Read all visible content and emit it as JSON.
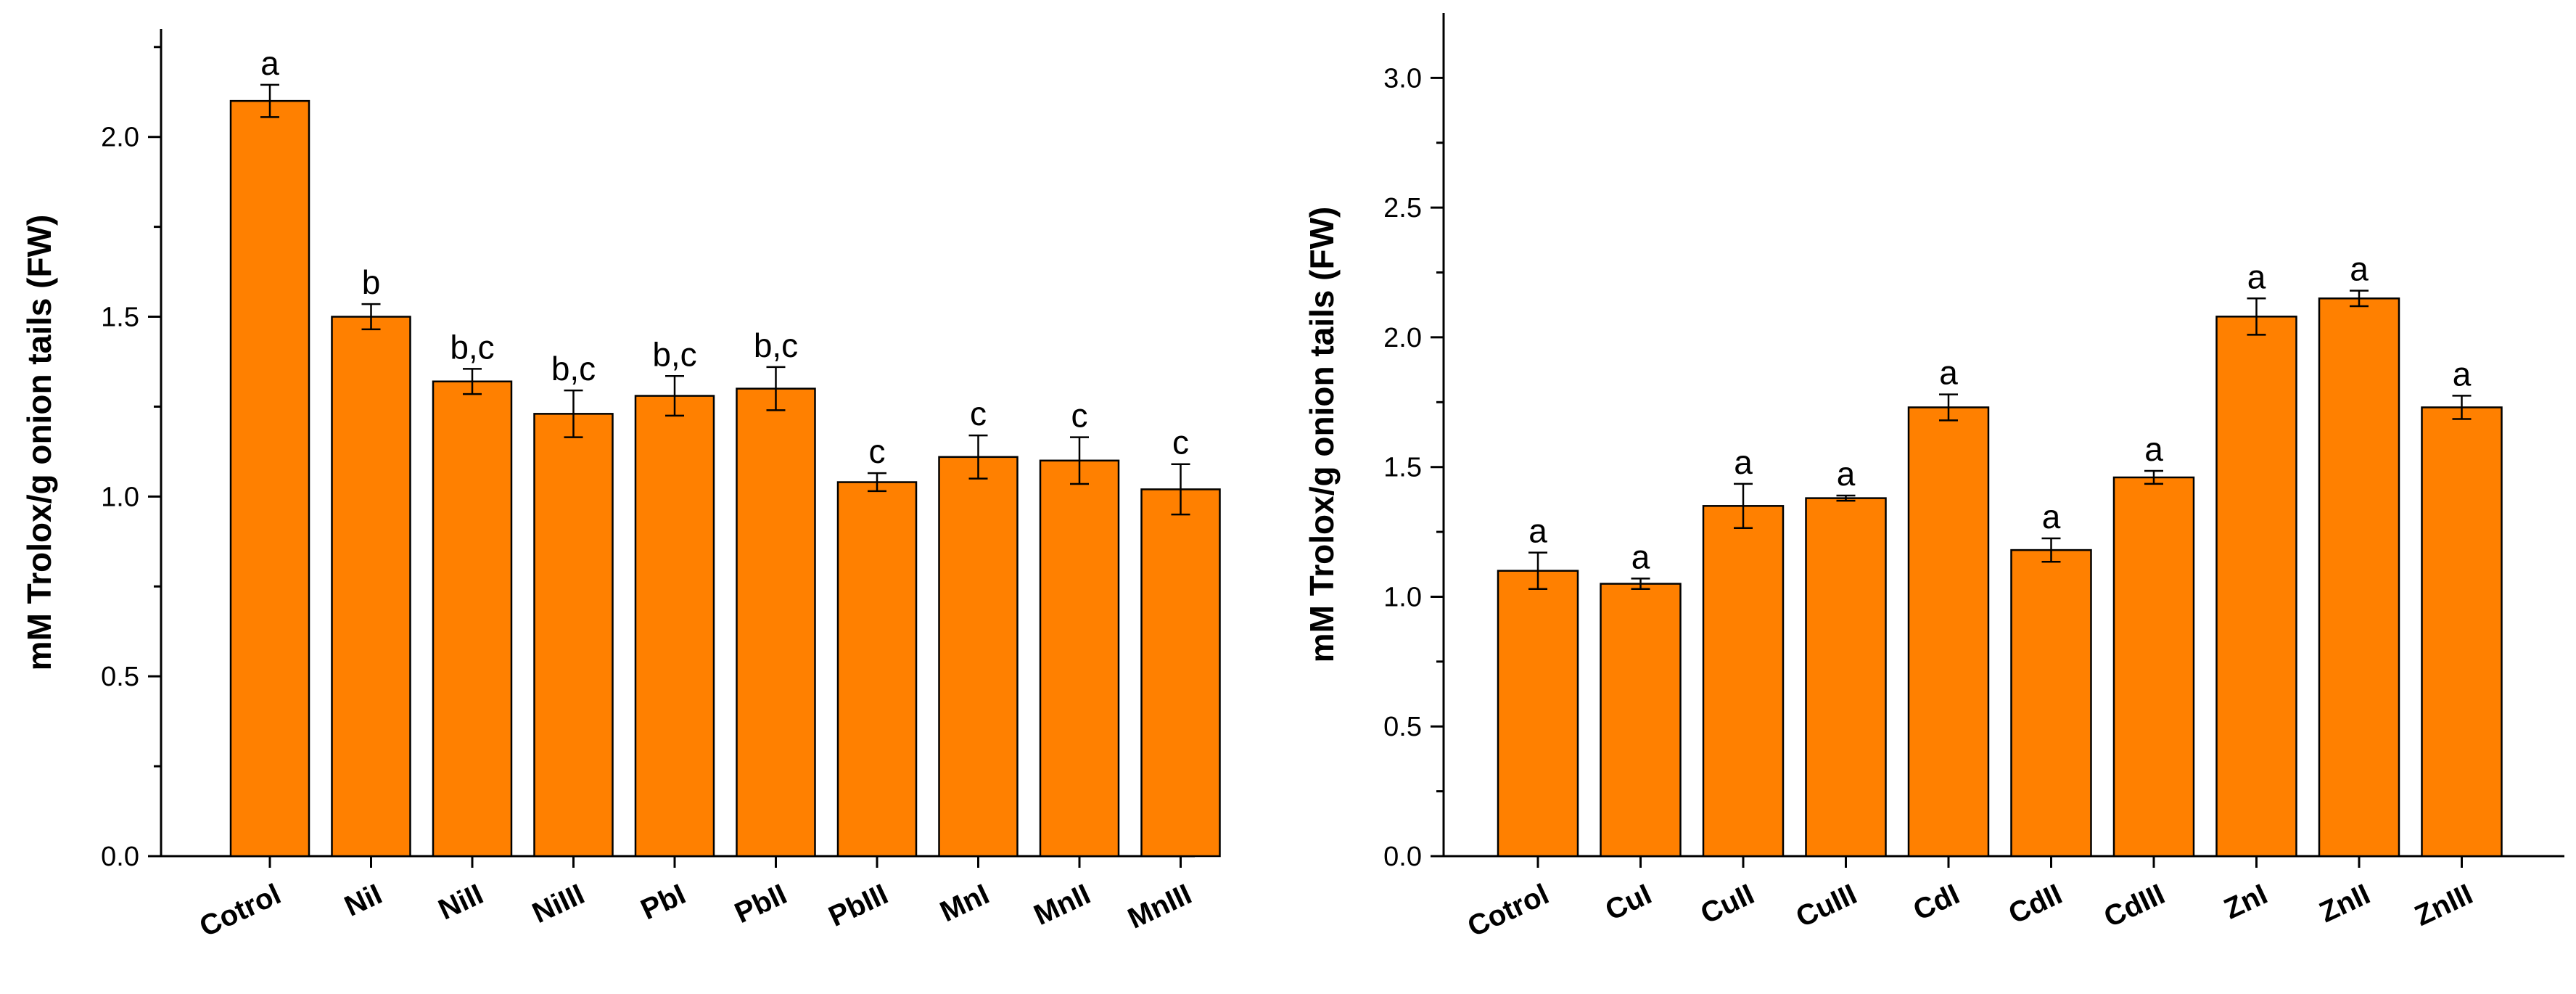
{
  "chart_data": [
    {
      "type": "bar",
      "title": "",
      "xlabel": "",
      "ylabel": "mM Trolox/g onion tails (FW)",
      "ylim": [
        0,
        2.3
      ],
      "yticks": [
        0.0,
        0.5,
        1.0,
        1.5,
        2.0
      ],
      "ytick_labels": [
        "0.0",
        "0.5",
        "1.0",
        "1.5",
        "2.0"
      ],
      "bar_color": "#FF8000",
      "categories": [
        "Cotrol",
        "NiI",
        "NiII",
        "NiIII",
        "PbI",
        "PbII",
        "PbIII",
        "MnI",
        "MnII",
        "MnIII"
      ],
      "values": [
        2.1,
        1.5,
        1.32,
        1.23,
        1.28,
        1.3,
        1.04,
        1.11,
        1.1,
        1.02
      ],
      "errors": [
        0.045,
        0.035,
        0.035,
        0.065,
        0.055,
        0.06,
        0.025,
        0.06,
        0.065,
        0.07
      ],
      "significance": [
        "a",
        "b",
        "b,c",
        "b,c",
        "b,c",
        "b,c",
        "c",
        "c",
        "c",
        "c"
      ]
    },
    {
      "type": "bar",
      "title": "",
      "xlabel": "",
      "ylabel": "mM Trolox/g onion tails (FW)",
      "ylim": [
        0,
        3.25
      ],
      "yticks": [
        0.0,
        0.5,
        1.0,
        1.5,
        2.0,
        2.5,
        3.0
      ],
      "ytick_labels": [
        "0.0",
        "0.5",
        "1.0",
        "1.5",
        "2.0",
        "2.5",
        "3.0"
      ],
      "bar_color": "#FF8000",
      "categories": [
        "Cotrol",
        "CuI",
        "CuII",
        "CuIII",
        "CdI",
        "CdII",
        "CdIII",
        "ZnI",
        "ZnII",
        "ZnIII"
      ],
      "values": [
        1.1,
        1.05,
        1.35,
        1.38,
        1.73,
        1.18,
        1.46,
        2.08,
        2.15,
        1.73
      ],
      "errors": [
        0.07,
        0.02,
        0.085,
        0.01,
        0.05,
        0.045,
        0.025,
        0.07,
        0.03,
        0.045
      ],
      "significance": [
        "a",
        "a",
        "a",
        "a",
        "a",
        "a",
        "a",
        "a",
        "a",
        "a"
      ]
    }
  ]
}
